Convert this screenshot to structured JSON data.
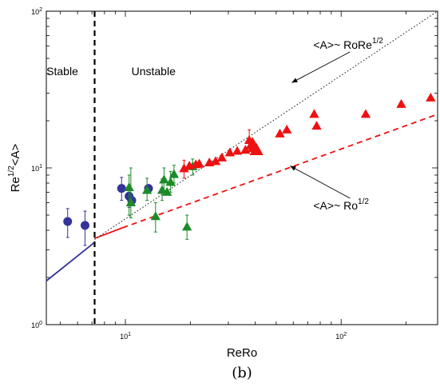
{
  "chart_data": {
    "type": "scatter",
    "x_scale": "log",
    "y_scale": "log",
    "xlim": [
      4.3,
      280
    ],
    "ylim": [
      1,
      100
    ],
    "xlabel": "ReRo",
    "ylabel": "Re^{1/2}<A>",
    "x_ticks": [
      {
        "value": 10,
        "base": "10",
        "exp": "1"
      },
      {
        "value": 100,
        "base": "10",
        "exp": "2"
      }
    ],
    "y_ticks": [
      {
        "value": 1,
        "base": "10",
        "exp": "0"
      },
      {
        "value": 10,
        "base": "10",
        "exp": "1"
      },
      {
        "value": 100,
        "base": "10",
        "exp": "2"
      }
    ],
    "caption": "(b)",
    "regions": [
      {
        "label": "Stable",
        "x": 5.1
      },
      {
        "label": "Unstable",
        "x": 13.5
      }
    ],
    "threshold_x": 7.2,
    "colors": {
      "blue": "#33339a",
      "green": "#1d8a2a",
      "red": "#ee1111"
    },
    "series": [
      {
        "marker": "circle",
        "color": "#33339a",
        "points": [
          {
            "x": 5.4,
            "y": 4.55,
            "lo": 3.6,
            "hi": 5.5
          },
          {
            "x": 6.5,
            "y": 4.3,
            "lo": 3.2,
            "hi": 5.3
          },
          {
            "x": 9.6,
            "y": 7.4,
            "lo": 6.2,
            "hi": 8.7
          },
          {
            "x": 10.4,
            "y": 6.6,
            "lo": 5.6,
            "hi": 7.6
          },
          {
            "x": 10.7,
            "y": 6.2
          },
          {
            "x": 12.8,
            "y": 7.4
          }
        ]
      },
      {
        "marker": "triangle",
        "color": "#1d8a2a",
        "points": [
          {
            "x": 10.4,
            "y": 7.5,
            "lo": 5.0,
            "hi": 9.0
          },
          {
            "x": 10.6,
            "y": 6.0,
            "lo": 4.8,
            "hi": 10.0
          },
          {
            "x": 12.6,
            "y": 7.2,
            "lo": 6.2,
            "hi": 8.6
          },
          {
            "x": 13.8,
            "y": 4.9,
            "lo": 3.9,
            "hi": 6.0
          },
          {
            "x": 14.8,
            "y": 7.2,
            "lo": 6.2,
            "hi": 8.5
          },
          {
            "x": 15.6,
            "y": 7.0
          },
          {
            "x": 15.1,
            "y": 8.4,
            "lo": 7.2,
            "hi": 10.0
          },
          {
            "x": 16.2,
            "y": 8.1,
            "lo": 7.0,
            "hi": 9.5
          },
          {
            "x": 16.8,
            "y": 9.1,
            "lo": 8.0,
            "hi": 10.4
          },
          {
            "x": 19.3,
            "y": 4.2,
            "lo": 3.5,
            "hi": 5.0
          },
          {
            "x": 20.5,
            "y": 10.2,
            "lo": 9.0,
            "hi": 11.4
          }
        ]
      },
      {
        "marker": "triangle",
        "color": "#ee1111",
        "points": [
          {
            "x": 18.7,
            "y": 9.9,
            "lo": 8.6,
            "hi": 11.2
          },
          {
            "x": 19.8,
            "y": 10.3
          },
          {
            "x": 21.2,
            "y": 10.5
          },
          {
            "x": 22.0,
            "y": 10.6
          },
          {
            "x": 24.5,
            "y": 10.8
          },
          {
            "x": 26.2,
            "y": 11.0
          },
          {
            "x": 28.0,
            "y": 11.6
          },
          {
            "x": 30.5,
            "y": 12.5
          },
          {
            "x": 33.0,
            "y": 12.8
          },
          {
            "x": 36.0,
            "y": 13.0
          },
          {
            "x": 37.5,
            "y": 15.0,
            "lo": 13.5,
            "hi": 17.5
          },
          {
            "x": 38.8,
            "y": 14.2,
            "big": true
          },
          {
            "x": 39.5,
            "y": 13.6,
            "big": true
          },
          {
            "x": 40.5,
            "y": 13.0,
            "big": true
          },
          {
            "x": 52.0,
            "y": 16.5
          },
          {
            "x": 56.0,
            "y": 17.5
          },
          {
            "x": 75.0,
            "y": 22.0
          },
          {
            "x": 77.0,
            "y": 18.5
          },
          {
            "x": 130.0,
            "y": 22.0
          },
          {
            "x": 190.0,
            "y": 25.5
          },
          {
            "x": 260.0,
            "y": 28.0
          }
        ]
      }
    ],
    "lines": [
      {
        "style": "solid",
        "color": "#33339a",
        "from": [
          4.3,
          1.9
        ],
        "to": [
          7.2,
          3.35
        ]
      },
      {
        "style": "solid",
        "color": "#ee1111",
        "from": [
          7.2,
          3.55
        ],
        "to": [
          9.7,
          4.15
        ]
      },
      {
        "style": "dashed",
        "color": "#ee1111",
        "from": [
          9.7,
          4.15
        ],
        "to": [
          280,
          22.0
        ]
      },
      {
        "style": "dotted",
        "color": "#333333",
        "from": [
          7.2,
          3.5
        ],
        "to": [
          280,
          100
        ]
      }
    ],
    "annotations": [
      {
        "base": "<A>~ RoRe",
        "sup": "1/2",
        "arrow_from": [
          110,
          55
        ],
        "arrow_to": [
          59,
          35
        ]
      },
      {
        "base": "<A>~ Ro",
        "sup": "1/2",
        "arrow_from": [
          110,
          6.4
        ],
        "arrow_to": [
          58,
          10.3
        ]
      }
    ]
  }
}
